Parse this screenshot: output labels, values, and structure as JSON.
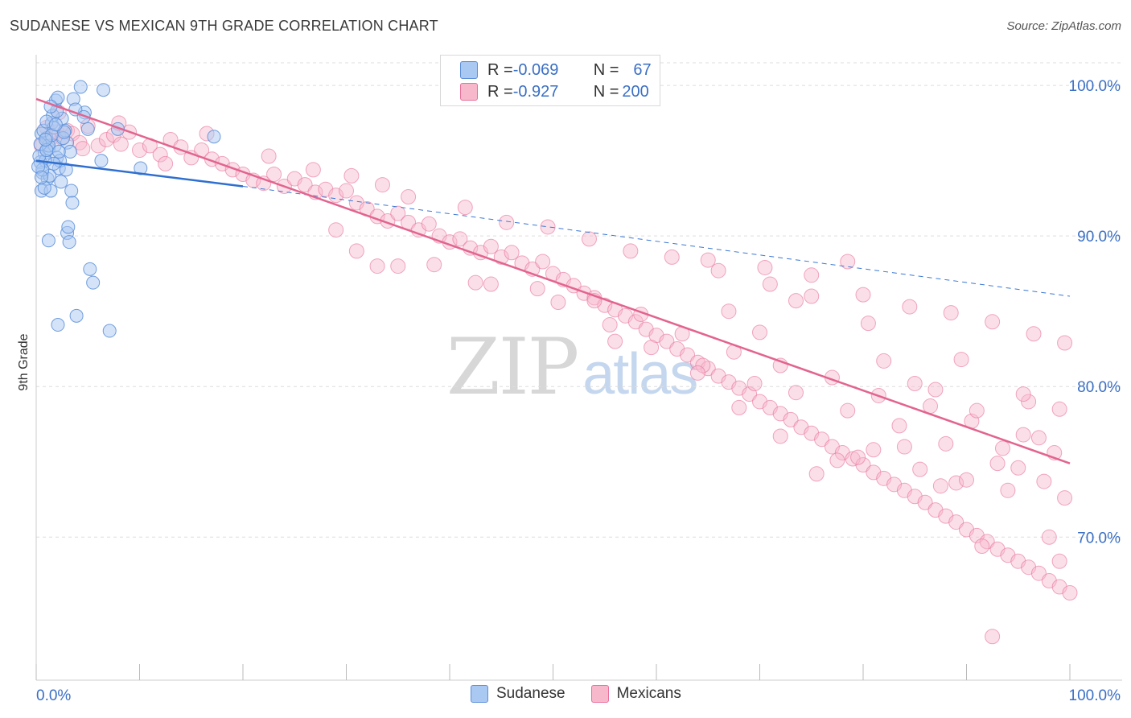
{
  "header": {
    "title": "SUDANESE VS MEXICAN 9TH GRADE CORRELATION CHART",
    "source": "Source: ZipAtlas.com"
  },
  "watermark": {
    "zip": "ZIP",
    "atlas": "atlas"
  },
  "legend_box": {
    "rows": [
      {
        "r_label": "R = ",
        "r_value": "-0.069",
        "n_label": "N = ",
        "n_value": "67",
        "color": "#a9c8f2"
      },
      {
        "r_label": "R = ",
        "r_value": "-0.927",
        "n_label": "N = ",
        "n_value": "200",
        "color": "#f7b8cc"
      }
    ]
  },
  "bottom_legend": {
    "items": [
      {
        "label": "Sudanese",
        "color": "#a9c8f2"
      },
      {
        "label": "Mexicans",
        "color": "#f7b8cc"
      }
    ]
  },
  "chart_data": {
    "type": "scatter",
    "title": "SUDANESE VS MEXICAN 9TH GRADE CORRELATION CHART",
    "xlabel": "",
    "ylabel": "9th Grade",
    "xlim": [
      0,
      100
    ],
    "ylim": [
      60.5,
      103
    ],
    "x_tick_labels": [
      "0.0%",
      "100.0%"
    ],
    "y_ticks": [
      70,
      80,
      90,
      100
    ],
    "y_tick_labels": [
      "70.0%",
      "80.0%",
      "90.0%",
      "100.0%"
    ],
    "grid": true,
    "legend_position": "top-center",
    "series": [
      {
        "name": "Sudanese",
        "color": "#5b8ed8",
        "fill": "#a9c8f2",
        "r": -0.069,
        "n": 67,
        "trend": {
          "x": [
            0,
            20
          ],
          "y": [
            95.0,
            93.3
          ]
        },
        "trend_extended": {
          "x": [
            20,
            100
          ],
          "y": [
            93.3,
            86.0
          ]
        },
        "points": [
          [
            0.5,
            96.8
          ],
          [
            0.8,
            95.5
          ],
          [
            0.4,
            94.9
          ],
          [
            0.6,
            94.2
          ],
          [
            0.5,
            93.0
          ],
          [
            1.0,
            96.5
          ],
          [
            1.2,
            95.8
          ],
          [
            1.5,
            97.5
          ],
          [
            0.7,
            97.0
          ],
          [
            1.8,
            96.0
          ],
          [
            2.0,
            95.2
          ],
          [
            2.2,
            94.5
          ],
          [
            1.1,
            93.8
          ],
          [
            1.4,
            93.0
          ],
          [
            2.5,
            97.8
          ],
          [
            2.8,
            97.0
          ],
          [
            3.0,
            96.2
          ],
          [
            1.6,
            98.0
          ],
          [
            1.9,
            99.0
          ],
          [
            2.1,
            99.2
          ],
          [
            0.9,
            95.0
          ],
          [
            1.3,
            94.0
          ],
          [
            2.4,
            93.6
          ],
          [
            3.3,
            95.6
          ],
          [
            1.7,
            97.2
          ],
          [
            2.6,
            96.5
          ],
          [
            3.6,
            99.1
          ],
          [
            2.0,
            98.3
          ],
          [
            0.3,
            95.3
          ],
          [
            0.6,
            94.4
          ],
          [
            1.0,
            97.6
          ],
          [
            1.2,
            96.0
          ],
          [
            2.3,
            95.0
          ],
          [
            0.8,
            93.2
          ],
          [
            1.5,
            96.7
          ],
          [
            2.9,
            94.4
          ],
          [
            3.4,
            93.0
          ],
          [
            3.5,
            92.2
          ],
          [
            3.0,
            90.2
          ],
          [
            3.2,
            89.6
          ],
          [
            3.1,
            90.6
          ],
          [
            1.2,
            89.7
          ],
          [
            5.2,
            87.8
          ],
          [
            5.5,
            86.9
          ],
          [
            2.1,
            84.1
          ],
          [
            3.9,
            84.7
          ],
          [
            7.1,
            83.7
          ],
          [
            4.3,
            99.9
          ],
          [
            6.5,
            99.7
          ],
          [
            4.7,
            98.2
          ],
          [
            3.8,
            98.4
          ],
          [
            5.0,
            97.1
          ],
          [
            7.9,
            97.1
          ],
          [
            17.2,
            96.6
          ],
          [
            6.3,
            95.0
          ],
          [
            10.1,
            94.5
          ],
          [
            4.6,
            97.9
          ],
          [
            0.4,
            96.1
          ],
          [
            1.0,
            95.7
          ],
          [
            1.7,
            94.8
          ],
          [
            2.7,
            96.9
          ],
          [
            0.2,
            94.6
          ],
          [
            0.5,
            93.9
          ],
          [
            1.9,
            97.4
          ],
          [
            2.2,
            95.6
          ],
          [
            1.4,
            98.6
          ],
          [
            0.9,
            96.4
          ]
        ]
      },
      {
        "name": "Mexicans",
        "color": "#e8709a",
        "fill": "#f7b8cc",
        "r": -0.927,
        "n": 200,
        "trend": {
          "x": [
            0,
            100
          ],
          "y": [
            99.1,
            74.9
          ]
        },
        "points": [
          [
            0.5,
            96.0
          ],
          [
            1.0,
            97.2
          ],
          [
            1.3,
            96.4
          ],
          [
            2.0,
            96.9
          ],
          [
            2.5,
            96.5
          ],
          [
            3.0,
            97.0
          ],
          [
            3.5,
            96.8
          ],
          [
            4.2,
            96.2
          ],
          [
            5.0,
            97.3
          ],
          [
            6.0,
            96.0
          ],
          [
            6.8,
            96.4
          ],
          [
            7.5,
            96.7
          ],
          [
            8.2,
            96.1
          ],
          [
            9.0,
            96.9
          ],
          [
            10.0,
            95.7
          ],
          [
            11.0,
            96.0
          ],
          [
            12.0,
            95.4
          ],
          [
            13.0,
            96.4
          ],
          [
            14.0,
            95.9
          ],
          [
            15.0,
            95.2
          ],
          [
            16.0,
            95.7
          ],
          [
            17.0,
            95.1
          ],
          [
            18.0,
            94.8
          ],
          [
            19.0,
            94.4
          ],
          [
            20.0,
            94.1
          ],
          [
            21.0,
            93.7
          ],
          [
            22.0,
            93.5
          ],
          [
            23.0,
            94.1
          ],
          [
            24.0,
            93.3
          ],
          [
            25.0,
            93.8
          ],
          [
            26.0,
            93.4
          ],
          [
            27.0,
            92.9
          ],
          [
            28.0,
            93.1
          ],
          [
            29.0,
            92.7
          ],
          [
            30.0,
            93.0
          ],
          [
            31.0,
            92.2
          ],
          [
            32.0,
            91.8
          ],
          [
            33.0,
            91.3
          ],
          [
            34.0,
            91.0
          ],
          [
            35.0,
            91.5
          ],
          [
            36.0,
            90.9
          ],
          [
            37.0,
            90.4
          ],
          [
            38.0,
            90.8
          ],
          [
            39.0,
            90.0
          ],
          [
            40.0,
            89.6
          ],
          [
            41.0,
            89.8
          ],
          [
            42.0,
            89.2
          ],
          [
            43.0,
            88.9
          ],
          [
            44.0,
            89.3
          ],
          [
            45.0,
            88.6
          ],
          [
            46.0,
            88.9
          ],
          [
            47.0,
            88.2
          ],
          [
            48.0,
            87.8
          ],
          [
            49.0,
            88.3
          ],
          [
            50.0,
            87.5
          ],
          [
            51.0,
            87.1
          ],
          [
            52.0,
            86.7
          ],
          [
            53.0,
            86.2
          ],
          [
            54.0,
            85.9
          ],
          [
            55.0,
            85.4
          ],
          [
            56.0,
            85.1
          ],
          [
            57.0,
            84.7
          ],
          [
            58.0,
            84.3
          ],
          [
            59.0,
            83.8
          ],
          [
            60.0,
            83.4
          ],
          [
            61.0,
            83.0
          ],
          [
            62.0,
            82.5
          ],
          [
            63.0,
            82.1
          ],
          [
            64.0,
            81.6
          ],
          [
            65.0,
            81.2
          ],
          [
            66.0,
            80.7
          ],
          [
            67.0,
            80.3
          ],
          [
            68.0,
            79.9
          ],
          [
            69.0,
            79.5
          ],
          [
            70.0,
            79.0
          ],
          [
            71.0,
            78.6
          ],
          [
            72.0,
            78.2
          ],
          [
            73.0,
            77.8
          ],
          [
            74.0,
            77.3
          ],
          [
            75.0,
            76.9
          ],
          [
            76.0,
            76.5
          ],
          [
            77.0,
            76.0
          ],
          [
            78.0,
            75.6
          ],
          [
            79.0,
            75.2
          ],
          [
            80.0,
            74.8
          ],
          [
            81.0,
            74.3
          ],
          [
            82.0,
            73.9
          ],
          [
            83.0,
            73.5
          ],
          [
            84.0,
            73.1
          ],
          [
            85.0,
            72.7
          ],
          [
            86.0,
            72.3
          ],
          [
            87.0,
            71.8
          ],
          [
            88.0,
            71.4
          ],
          [
            89.0,
            71.0
          ],
          [
            90.0,
            70.5
          ],
          [
            91.0,
            70.1
          ],
          [
            92.0,
            69.7
          ],
          [
            93.0,
            69.2
          ],
          [
            94.0,
            68.8
          ],
          [
            95.0,
            68.4
          ],
          [
            96.0,
            68.0
          ],
          [
            97.0,
            67.6
          ],
          [
            98.0,
            67.1
          ],
          [
            99.0,
            66.7
          ],
          [
            100.0,
            66.3
          ],
          [
            2.2,
            98.2
          ],
          [
            4.5,
            95.8
          ],
          [
            8.0,
            97.5
          ],
          [
            12.5,
            94.8
          ],
          [
            16.5,
            96.8
          ],
          [
            22.5,
            95.3
          ],
          [
            26.8,
            94.4
          ],
          [
            30.5,
            94.0
          ],
          [
            33.5,
            93.4
          ],
          [
            36.0,
            92.6
          ],
          [
            41.5,
            91.9
          ],
          [
            45.5,
            90.9
          ],
          [
            49.5,
            90.6
          ],
          [
            53.5,
            89.8
          ],
          [
            57.5,
            89.0
          ],
          [
            61.5,
            88.6
          ],
          [
            66.0,
            87.7
          ],
          [
            70.5,
            87.9
          ],
          [
            75.0,
            87.4
          ],
          [
            80.0,
            86.1
          ],
          [
            84.5,
            85.3
          ],
          [
            88.5,
            84.9
          ],
          [
            92.5,
            84.3
          ],
          [
            96.5,
            83.5
          ],
          [
            99.5,
            82.9
          ],
          [
            38.5,
            88.1
          ],
          [
            44.0,
            86.8
          ],
          [
            50.5,
            85.6
          ],
          [
            55.5,
            84.1
          ],
          [
            59.5,
            82.6
          ],
          [
            64.5,
            81.4
          ],
          [
            69.5,
            80.2
          ],
          [
            73.5,
            79.6
          ],
          [
            78.5,
            78.4
          ],
          [
            83.5,
            77.4
          ],
          [
            88.0,
            76.2
          ],
          [
            93.0,
            74.9
          ],
          [
            97.5,
            73.7
          ],
          [
            99.5,
            72.6
          ],
          [
            35.0,
            88.0
          ],
          [
            42.5,
            86.9
          ],
          [
            48.5,
            86.5
          ],
          [
            54.0,
            85.7
          ],
          [
            58.5,
            84.8
          ],
          [
            62.5,
            83.5
          ],
          [
            67.5,
            82.3
          ],
          [
            72.0,
            81.4
          ],
          [
            77.0,
            80.6
          ],
          [
            81.5,
            79.4
          ],
          [
            86.5,
            78.7
          ],
          [
            90.5,
            77.7
          ],
          [
            95.5,
            76.8
          ],
          [
            98.5,
            75.6
          ],
          [
            73.5,
            85.7
          ],
          [
            78.5,
            88.3
          ],
          [
            80.5,
            84.2
          ],
          [
            82.0,
            81.7
          ],
          [
            85.0,
            80.2
          ],
          [
            89.5,
            81.8
          ],
          [
            91.0,
            78.4
          ],
          [
            96.0,
            79.0
          ],
          [
            97.0,
            76.6
          ],
          [
            93.5,
            75.9
          ],
          [
            87.0,
            79.8
          ],
          [
            75.5,
            74.2
          ],
          [
            79.5,
            75.3
          ],
          [
            85.5,
            74.5
          ],
          [
            89.0,
            73.6
          ],
          [
            91.5,
            69.4
          ],
          [
            95.0,
            74.6
          ],
          [
            98.0,
            70.0
          ],
          [
            99.0,
            68.4
          ],
          [
            92.5,
            63.4
          ],
          [
            29.0,
            90.4
          ],
          [
            31.0,
            89.0
          ],
          [
            33.0,
            88.0
          ],
          [
            56.0,
            83.0
          ],
          [
            64.0,
            80.9
          ],
          [
            70.0,
            83.6
          ],
          [
            75.0,
            86.0
          ],
          [
            81.0,
            75.8
          ],
          [
            87.5,
            73.4
          ],
          [
            94.0,
            73.1
          ],
          [
            99.0,
            78.5
          ],
          [
            68.0,
            78.6
          ],
          [
            72.0,
            76.7
          ],
          [
            77.5,
            75.1
          ],
          [
            84.0,
            76.0
          ],
          [
            90.0,
            73.8
          ],
          [
            95.5,
            79.5
          ],
          [
            67.0,
            85.0
          ],
          [
            71.0,
            86.8
          ],
          [
            65.0,
            88.4
          ]
        ]
      }
    ]
  }
}
